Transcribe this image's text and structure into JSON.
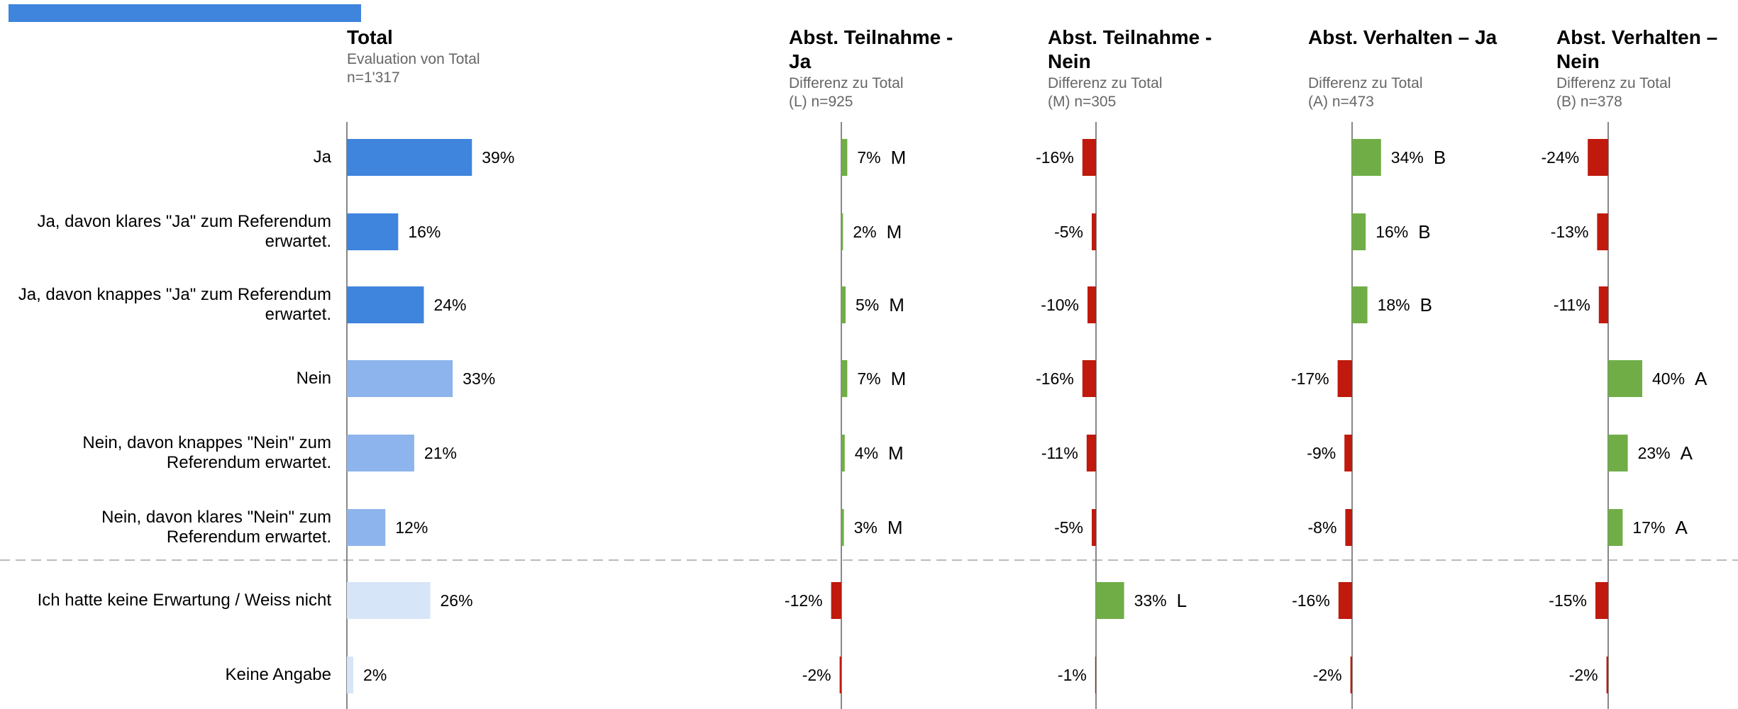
{
  "chart_data": [
    {
      "type": "bar",
      "title": "Total",
      "subtitle": "Evaluation von Total",
      "note": "n=1'317",
      "categories": [
        "Ja",
        "Ja, davon klares \"Ja\" zum Referendum erwartet.",
        "Ja, davon knappes \"Ja\" zum Referendum erwartet.",
        "Nein",
        "Nein, davon knappes \"Nein\" zum Referendum erwartet.",
        "Nein, davon klares \"Nein\" zum Referendum erwartet.",
        "Ich hatte keine Erwartung / Weiss nicht",
        "Keine Angabe"
      ],
      "values": [
        39,
        16,
        24,
        33,
        21,
        12,
        26,
        2
      ],
      "value_labels": [
        "39%",
        "16%",
        "24%",
        "33%",
        "21%",
        "12%",
        "26%",
        "2%"
      ],
      "colors": [
        "#3f84dd",
        "#3f84dd",
        "#3f84dd",
        "#8db4ec",
        "#8db4ec",
        "#8db4ec",
        "#d6e5f7",
        "#d6e5f7"
      ]
    },
    {
      "type": "diff",
      "title": "Abst. Teilnahme - Ja",
      "subtitle": "Differenz zu Total",
      "note": "(L) n=925",
      "values": [
        7,
        2,
        5,
        7,
        4,
        3,
        -12,
        -2
      ],
      "value_labels": [
        "7%",
        "2%",
        "5%",
        "7%",
        "4%",
        "3%",
        "-12%",
        "-2%"
      ],
      "letters": [
        "M",
        "M",
        "M",
        "M",
        "M",
        "M",
        null,
        null
      ],
      "positive_color": "#70ad47",
      "negative_color": "#c0190d"
    },
    {
      "type": "diff",
      "title": "Abst. Teilnahme - Nein",
      "subtitle": "Differenz zu Total",
      "note": "(M) n=305",
      "values": [
        -16,
        -5,
        -10,
        -16,
        -11,
        -5,
        33,
        -1
      ],
      "value_labels": [
        "-16%",
        "-5%",
        "-10%",
        "-16%",
        "-11%",
        "-5%",
        "33%",
        "-1%"
      ],
      "letters": [
        null,
        null,
        null,
        null,
        null,
        null,
        "L",
        null
      ],
      "positive_color": "#70ad47",
      "negative_color": "#c0190d"
    },
    {
      "type": "diff",
      "title": "Abst. Verhalten – Ja",
      "subtitle": "Differenz zu Total",
      "note": "(A) n=473",
      "values": [
        34,
        16,
        18,
        -17,
        -9,
        -8,
        -16,
        -2
      ],
      "value_labels": [
        "34%",
        "16%",
        "18%",
        "-17%",
        "-9%",
        "-8%",
        "-16%",
        "-2%"
      ],
      "letters": [
        "B",
        "B",
        "B",
        null,
        null,
        null,
        null,
        null
      ],
      "positive_color": "#70ad47",
      "negative_color": "#c0190d"
    },
    {
      "type": "diff",
      "title": "Abst. Verhalten – Nein",
      "subtitle": "Differenz zu Total",
      "note": "(B) n=378",
      "values": [
        -24,
        -13,
        -11,
        40,
        23,
        17,
        -15,
        -2
      ],
      "value_labels": [
        "-24%",
        "-13%",
        "-11%",
        "40%",
        "23%",
        "17%",
        "-15%",
        "-2%"
      ],
      "letters": [
        null,
        null,
        null,
        "A",
        "A",
        "A",
        null,
        null
      ],
      "positive_color": "#70ad47",
      "negative_color": "#c0190d"
    }
  ]
}
